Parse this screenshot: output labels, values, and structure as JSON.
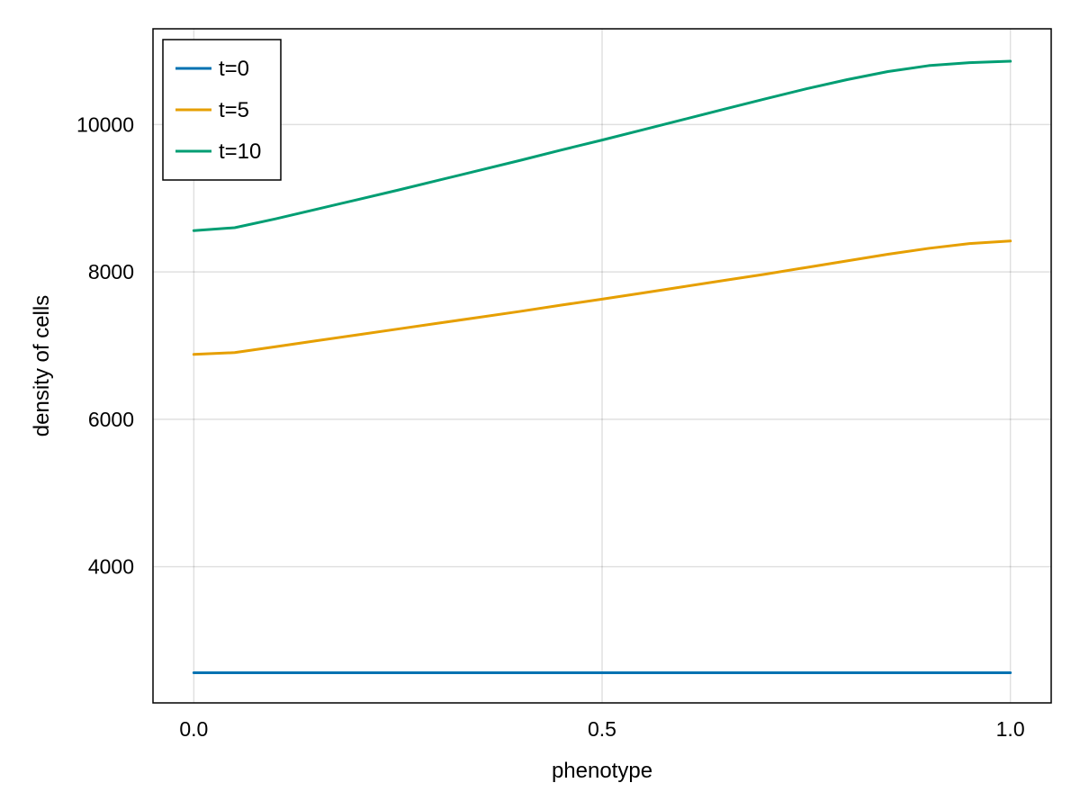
{
  "chart_data": {
    "type": "line",
    "title": "",
    "xlabel": "phenotype",
    "ylabel": "density of cells",
    "xlim": [
      -0.05,
      1.05
    ],
    "ylim": [
      2150,
      11300
    ],
    "xticks": [
      0.0,
      0.5,
      1.0
    ],
    "xtick_labels": [
      "0.0",
      "0.5",
      "1.0"
    ],
    "yticks": [
      4000,
      6000,
      8000,
      10000
    ],
    "ytick_labels": [
      "4000",
      "6000",
      "8000",
      "10000"
    ],
    "grid": true,
    "legend_position": "top-left",
    "x": [
      0.0,
      0.05,
      0.1,
      0.15,
      0.2,
      0.25,
      0.3,
      0.35,
      0.4,
      0.45,
      0.5,
      0.55,
      0.6,
      0.65,
      0.7,
      0.75,
      0.8,
      0.85,
      0.9,
      0.95,
      1.0
    ],
    "series": [
      {
        "name": "t=0",
        "color": "#0072b2",
        "values": [
          2560,
          2560,
          2560,
          2560,
          2560,
          2560,
          2560,
          2560,
          2560,
          2560,
          2560,
          2560,
          2560,
          2560,
          2560,
          2560,
          2560,
          2560,
          2560,
          2560,
          2560
        ]
      },
      {
        "name": "t=5",
        "color": "#e69f00",
        "values": [
          6880,
          6905,
          6985,
          7065,
          7145,
          7225,
          7305,
          7385,
          7465,
          7550,
          7630,
          7715,
          7800,
          7885,
          7970,
          8060,
          8150,
          8240,
          8320,
          8385,
          8420
        ]
      },
      {
        "name": "t=10",
        "color": "#009e73",
        "values": [
          8560,
          8600,
          8720,
          8850,
          8980,
          9110,
          9245,
          9380,
          9515,
          9655,
          9790,
          9930,
          10070,
          10210,
          10350,
          10485,
          10610,
          10720,
          10800,
          10840,
          10860
        ]
      }
    ]
  }
}
